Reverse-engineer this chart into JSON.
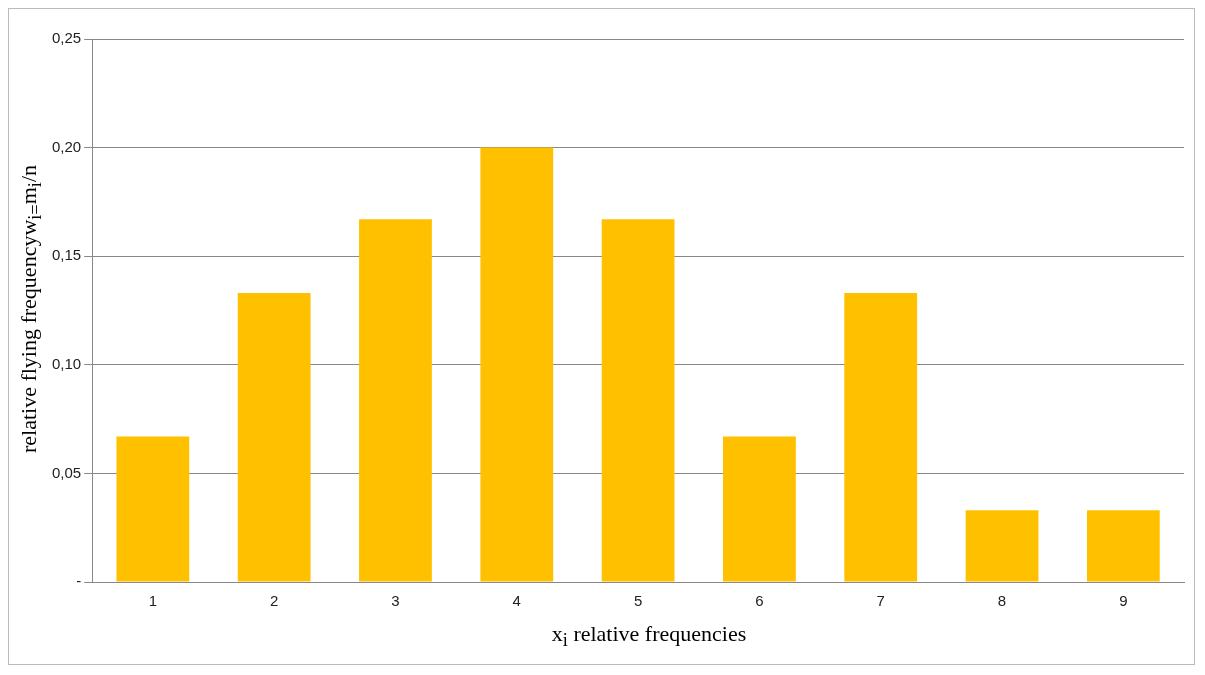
{
  "chart_data": {
    "type": "bar",
    "xlabel": "x$_{i}$ relative frequencies",
    "ylabel": "relative flying frequencyw$_{i=}$m$_{i}$/n",
    "categories": [
      "1",
      "2",
      "3",
      "4",
      "5",
      "6",
      "7",
      "8",
      "9"
    ],
    "values": [
      0.067,
      0.133,
      0.167,
      0.2,
      0.167,
      0.067,
      0.133,
      0.033,
      0.033
    ],
    "color": "#ffc000",
    "ylim": [
      0,
      0.25
    ],
    "yticks": [
      {
        "value": 0,
        "label": "-"
      },
      {
        "value": 0.05,
        "label": "0,05"
      },
      {
        "value": 0.1,
        "label": "0,10"
      },
      {
        "value": 0.15,
        "label": "0,15"
      },
      {
        "value": 0.2,
        "label": "0,20"
      },
      {
        "value": 0.25,
        "label": "0,25"
      }
    ],
    "grid": "y",
    "legend": false
  }
}
